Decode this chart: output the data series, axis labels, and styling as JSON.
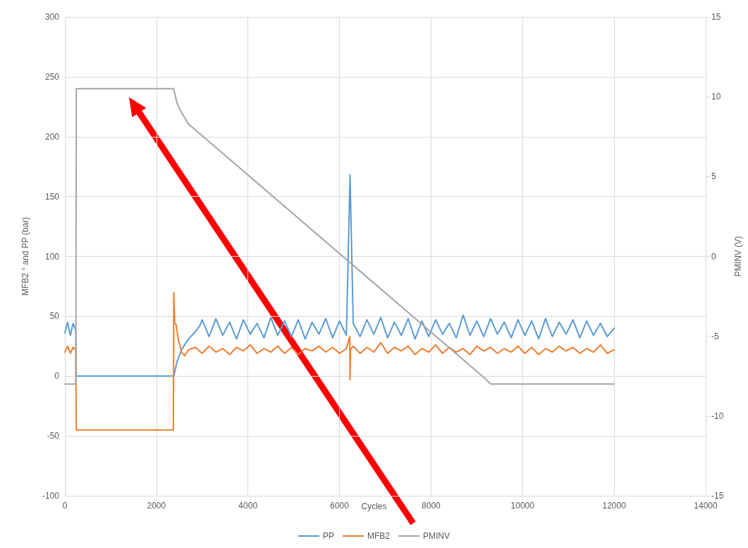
{
  "chart_data": {
    "type": "line",
    "xlabel": "Cycles",
    "ylabel": "MFB2 ° and PP (bar)",
    "y2label": "PMINV (V)",
    "xlim": [
      0,
      14000
    ],
    "xticks": [
      0,
      2000,
      4000,
      6000,
      8000,
      10000,
      12000,
      14000
    ],
    "ylim": [
      -100,
      300
    ],
    "yticks": [
      -100,
      -50,
      0,
      50,
      100,
      150,
      200,
      250,
      300
    ],
    "y2lim": [
      -15,
      15
    ],
    "y2ticks": [
      -15,
      -10,
      -5,
      0,
      5,
      10,
      15
    ],
    "grid": true,
    "legend": "bottom",
    "marker": "none",
    "line_style": "solid",
    "series": [
      {
        "name": "PP",
        "color": "#5b9bd5",
        "x": [
          0,
          60,
          120,
          180,
          240,
          250,
          2380,
          2450,
          2550,
          2700,
          2850,
          2950,
          3000,
          3150,
          3300,
          3450,
          3600,
          3750,
          3900,
          4050,
          4200,
          4350,
          4500,
          4650,
          4800,
          4950,
          5100,
          5250,
          5400,
          5550,
          5700,
          5850,
          6000,
          6150,
          6230,
          6300,
          6450,
          6600,
          6750,
          6900,
          7050,
          7200,
          7350,
          7500,
          7650,
          7800,
          7950,
          8100,
          8250,
          8400,
          8550,
          8700,
          8850,
          9000,
          9150,
          9300,
          9450,
          9600,
          9750,
          9900,
          10050,
          10200,
          10350,
          10500,
          10650,
          10800,
          10950,
          11100,
          11250,
          11400,
          11550,
          11700,
          11850,
          12000
        ],
        "values": [
          36,
          45,
          34,
          44,
          38,
          0,
          0,
          12,
          22,
          31,
          37,
          42,
          47,
          33,
          48,
          34,
          45,
          31,
          47,
          35,
          44,
          32,
          49,
          34,
          46,
          33,
          47,
          31,
          45,
          35,
          48,
          32,
          46,
          34,
          168,
          44,
          33,
          47,
          35,
          49,
          32,
          45,
          34,
          48,
          31,
          46,
          33,
          47,
          35,
          44,
          32,
          51,
          34,
          46,
          33,
          48,
          35,
          45,
          32,
          47,
          34,
          46,
          31,
          48,
          33,
          45,
          35,
          47,
          32,
          46,
          34,
          44,
          33,
          40
        ]
      },
      {
        "name": "MFB2",
        "color": "#ed7d31",
        "x": [
          0,
          60,
          120,
          180,
          240,
          250,
          2370,
          2380,
          2400,
          2430,
          2480,
          2550,
          2620,
          2700,
          2850,
          3000,
          3150,
          3300,
          3450,
          3600,
          3750,
          3900,
          4050,
          4200,
          4350,
          4500,
          4650,
          4800,
          4950,
          5100,
          5250,
          5400,
          5550,
          5700,
          5850,
          6000,
          6150,
          6225,
          6230,
          6240,
          6300,
          6450,
          6600,
          6750,
          6900,
          7050,
          7200,
          7350,
          7500,
          7650,
          7800,
          7950,
          8100,
          8250,
          8400,
          8550,
          8700,
          8850,
          9000,
          9150,
          9300,
          9450,
          9600,
          9750,
          9900,
          10050,
          10200,
          10350,
          10500,
          10650,
          10800,
          10950,
          11100,
          11250,
          11400,
          11550,
          11700,
          11850,
          12000
        ],
        "values": [
          20,
          25,
          19,
          24,
          22,
          -45,
          -45,
          70,
          44,
          43,
          30,
          20,
          17,
          22,
          24,
          19,
          25,
          20,
          23,
          18,
          24,
          21,
          26,
          19,
          23,
          20,
          25,
          19,
          24,
          18,
          23,
          21,
          25,
          20,
          24,
          19,
          23,
          33,
          -3,
          22,
          25,
          19,
          24,
          20,
          28,
          19,
          24,
          21,
          25,
          18,
          23,
          20,
          26,
          19,
          24,
          20,
          23,
          18,
          25,
          21,
          24,
          19,
          23,
          20,
          25,
          19,
          24,
          18,
          23,
          20,
          25,
          21,
          24,
          19,
          23,
          20,
          26,
          19,
          22
        ]
      },
      {
        "name": "PMINV",
        "color": "#a5a5a5",
        "axis": "y2",
        "x": [
          0,
          240,
          250,
          2380,
          2450,
          2550,
          2700,
          9200,
          9300,
          9400,
          12000
        ],
        "values": [
          -8,
          -8,
          10.5,
          10.5,
          9.6,
          9.0,
          8.3,
          -7.7,
          -8,
          -8,
          -8
        ]
      }
    ]
  }
}
